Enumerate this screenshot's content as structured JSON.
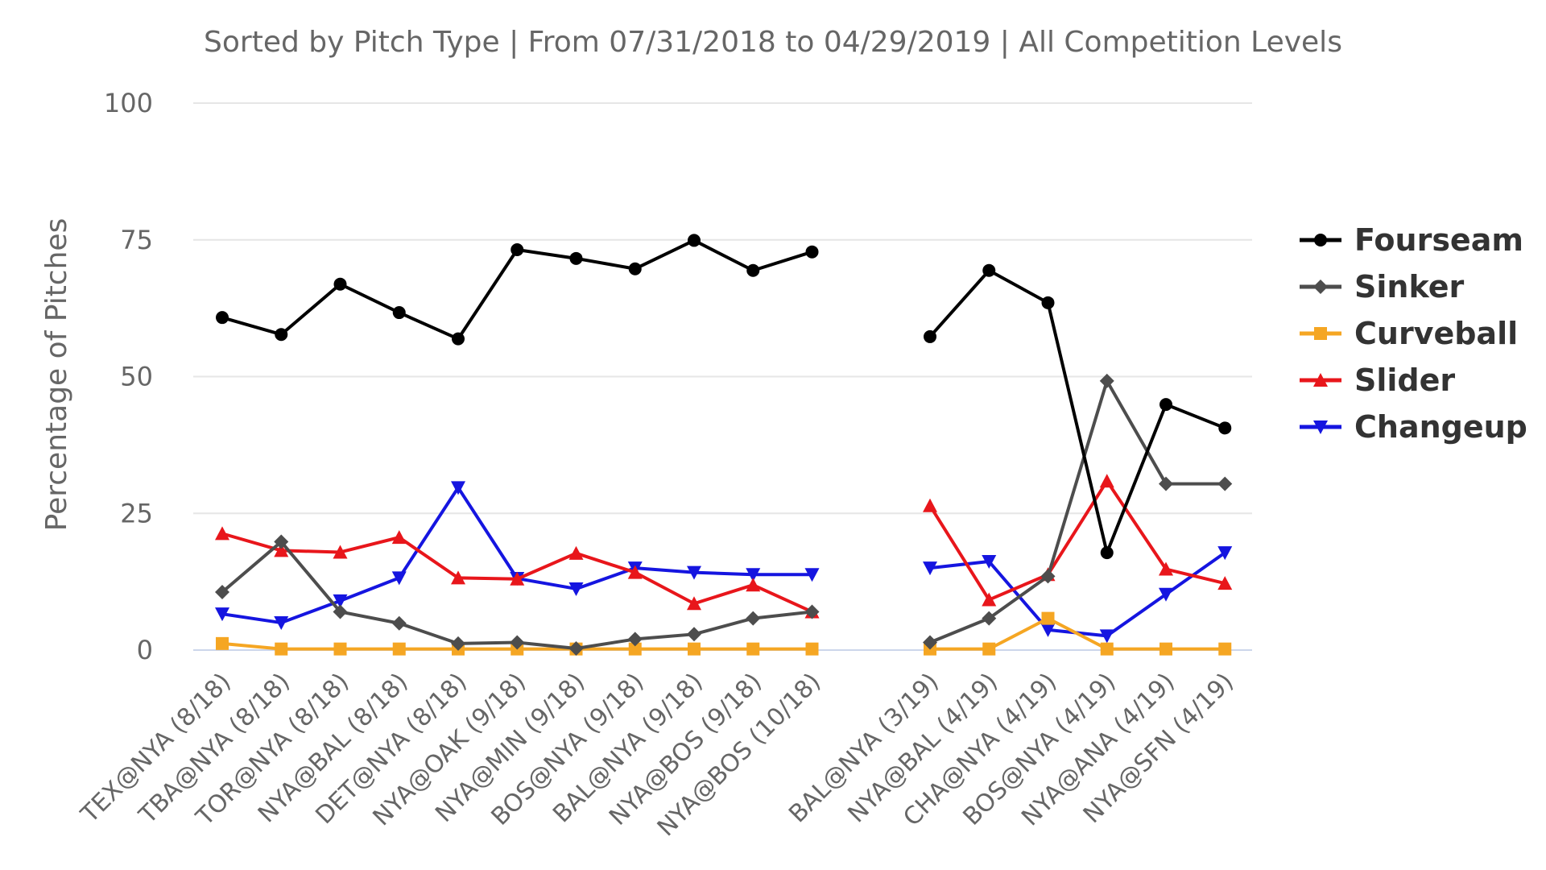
{
  "chart_data": {
    "type": "line",
    "subtitle": "Sorted by Pitch Type | From 07/31/2018 to 04/29/2019 | All Competition Levels",
    "ylabel": "Percentage of Pitches",
    "xlabel": "",
    "ylim": [
      0,
      100
    ],
    "yticks": [
      "0",
      "25",
      "50",
      "75",
      "100"
    ],
    "categories": [
      "TEX@NYA (8/18)",
      "TBA@NYA (8/18)",
      "TOR@NYA (8/18)",
      "NYA@BAL (8/18)",
      "DET@NYA (8/18)",
      "NYA@OAK (9/18)",
      "NYA@MIN (9/18)",
      "BOS@NYA (9/18)",
      "BAL@NYA (9/18)",
      "NYA@BOS (9/18)",
      "NYA@BOS (10/18)",
      "",
      "BAL@NYA (3/19)",
      "NYA@BAL (4/19)",
      "CHA@NYA (4/19)",
      "BOS@NYA (4/19)",
      "NYA@ANA (4/19)",
      "NYA@SFN (4/19)"
    ],
    "legend_position": "right",
    "series": [
      {
        "name": "Fourseam",
        "color": "#000000",
        "marker": "circle",
        "values": [
          60.8,
          57.7,
          66.9,
          61.7,
          56.9,
          73.2,
          71.6,
          69.7,
          74.9,
          69.4,
          72.8,
          null,
          57.3,
          69.4,
          63.5,
          17.8,
          44.9,
          40.6
        ]
      },
      {
        "name": "Sinker",
        "color": "#4d4d4d",
        "marker": "diamond",
        "values": [
          10.6,
          19.8,
          7.0,
          4.9,
          1.2,
          1.4,
          0.3,
          2.0,
          2.9,
          5.8,
          7.0,
          null,
          1.4,
          5.8,
          13.5,
          49.2,
          30.4,
          30.4
        ]
      },
      {
        "name": "Curveball",
        "color": "#f5a623",
        "marker": "square",
        "values": [
          1.2,
          0.2,
          0.2,
          0.2,
          0.2,
          0.2,
          0.2,
          0.2,
          0.2,
          0.2,
          0.2,
          null,
          0.2,
          0.2,
          5.8,
          0.2,
          0.2,
          0.2
        ]
      },
      {
        "name": "Slider",
        "color": "#e8161b",
        "marker": "triangle",
        "values": [
          21.3,
          18.2,
          17.9,
          20.6,
          13.2,
          13.0,
          17.7,
          14.2,
          8.5,
          11.9,
          7.0,
          null,
          26.4,
          9.2,
          13.8,
          30.9,
          14.8,
          12.2
        ]
      },
      {
        "name": "Changeup",
        "color": "#1515e0",
        "marker": "triangle-down",
        "values": [
          6.6,
          5.0,
          9.0,
          13.2,
          29.7,
          13.1,
          11.2,
          15.0,
          14.2,
          13.8,
          13.8,
          null,
          15.0,
          16.2,
          3.7,
          2.6,
          10.2,
          17.8
        ]
      }
    ]
  }
}
